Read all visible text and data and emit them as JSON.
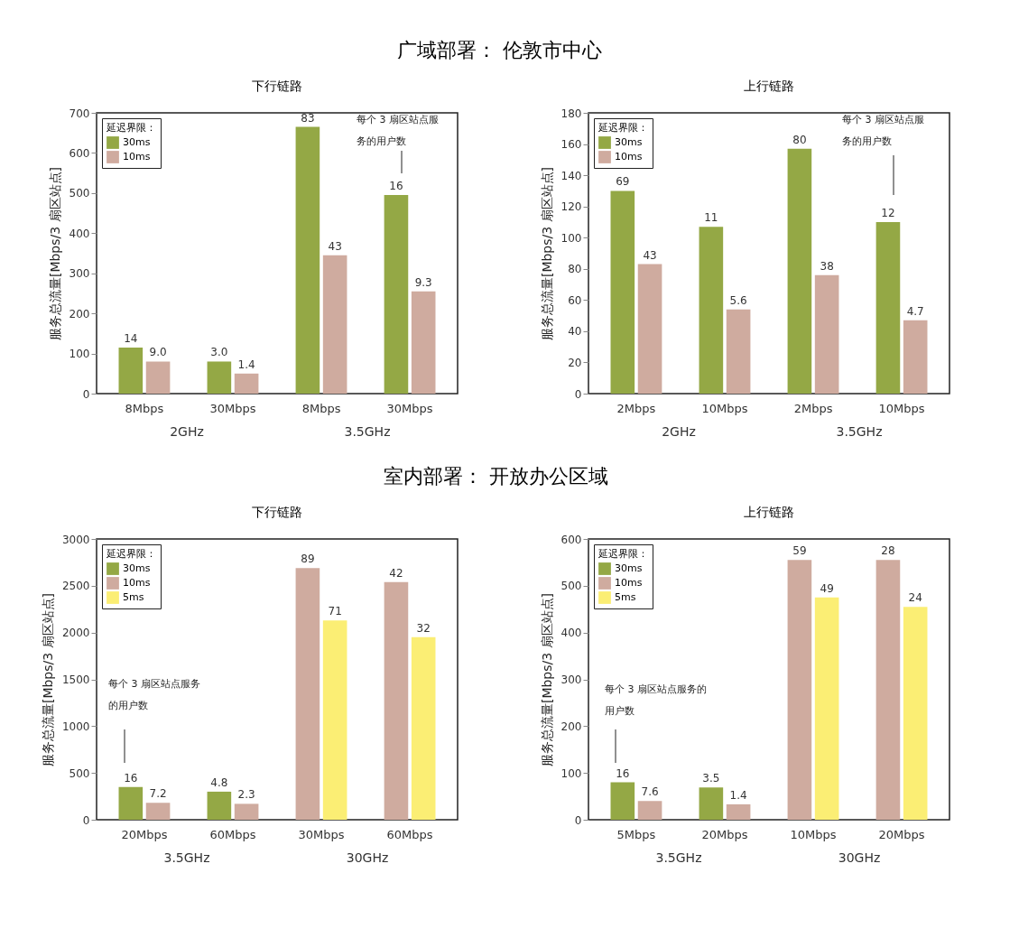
{
  "chart_data": [
    {
      "type": "bar",
      "title": "广域部署： 伦敦市中心",
      "subtitle": "下行链路",
      "ylabel": "服务总流量[Mbps/3 扇区站点]",
      "legend_title": "延迟界限：",
      "legend": "top left",
      "categories": [
        "8Mbps",
        "30Mbps",
        "8Mbps",
        "30Mbps"
      ],
      "series": [
        {
          "name": "30ms",
          "color": "#94a845",
          "values": [
            115,
            80,
            665,
            495
          ]
        },
        {
          "name": "10ms",
          "color": "#cfab9f",
          "values": [
            80,
            50,
            345,
            255
          ]
        }
      ],
      "ylim": [
        0,
        700
      ],
      "yticks": [
        0,
        100,
        200,
        300,
        400,
        500,
        600,
        700
      ],
      "annotations": [
        "每个 3 扇区站点服务的用户数",
        "14",
        "3.0",
        "83",
        "16",
        "9.0",
        "1.4",
        "43",
        "9.3",
        "2GHz",
        "3.5GHz"
      ]
    },
    {
      "type": "bar",
      "subtitle": "上行链路",
      "ylabel": "服务总流量[Mbps/3 扇区站点]",
      "legend_title": "延迟界限：",
      "legend": "top left",
      "categories": [
        "2Mbps",
        "10Mbps",
        "2Mbps",
        "10Mbps"
      ],
      "series": [
        {
          "name": "30ms",
          "color": "#94a845",
          "values": [
            130,
            107,
            157,
            110
          ]
        },
        {
          "name": "10ms",
          "color": "#cfab9f",
          "values": [
            83,
            54,
            76,
            47
          ]
        }
      ],
      "ylim": [
        0,
        180
      ],
      "yticks": [
        0,
        20,
        40,
        60,
        80,
        100,
        120,
        140,
        160,
        180
      ],
      "annotations": [
        "每个 3 扇区站点服务的用户数",
        "69",
        "11",
        "80",
        "12",
        "43",
        "5.6",
        "38",
        "4.7",
        "2GHz",
        "3.5GHz"
      ]
    },
    {
      "type": "bar",
      "title": "室内部署： 开放办公区域",
      "subtitle": "下行链路",
      "ylabel": "服务总流量[Mbps/3 扇区站点]",
      "legend_title": "延迟界限：",
      "legend": "top left",
      "categories": [
        "20Mbps",
        "60Mbps",
        "30Mbps",
        "60Mbps"
      ],
      "series": [
        {
          "name": "30ms",
          "color": "#94a845",
          "values": [
            350,
            300,
            null,
            null
          ]
        },
        {
          "name": "10ms",
          "color": "#cfab9f",
          "values": [
            180,
            170,
            2690,
            2540
          ]
        },
        {
          "name": "5ms",
          "color": "#fbee74",
          "values": [
            null,
            null,
            2130,
            1950
          ]
        }
      ],
      "ylim": [
        0,
        3000
      ],
      "yticks": [
        0,
        500,
        1000,
        1500,
        2000,
        2500,
        3000
      ],
      "annotations": [
        "每个 3 扇区站点服务的用户数",
        "16",
        "4.8",
        "7.2",
        "2.3",
        "89",
        "42",
        "71",
        "32",
        "3.5GHz",
        "30GHz"
      ]
    },
    {
      "type": "bar",
      "subtitle": "上行链路",
      "ylabel": "服务总流量[Mbps/3 扇区站点]",
      "legend_title": "延迟界限：",
      "legend": "top left",
      "categories": [
        "5Mbps",
        "20Mbps",
        "10Mbps",
        "20Mbps"
      ],
      "series": [
        {
          "name": "30ms",
          "color": "#94a845",
          "values": [
            80,
            69,
            null,
            null
          ]
        },
        {
          "name": "10ms",
          "color": "#cfab9f",
          "values": [
            40,
            33,
            555,
            555
          ]
        },
        {
          "name": "5ms",
          "color": "#fbee74",
          "values": [
            null,
            null,
            475,
            455
          ]
        }
      ],
      "ylim": [
        0,
        600
      ],
      "yticks": [
        0,
        100,
        200,
        300,
        400,
        500,
        600
      ],
      "annotations": [
        "每个 3 扇区站点服务的用户数",
        "16",
        "3.5",
        "7.6",
        "1.4",
        "59",
        "28",
        "49",
        "24",
        "3.5GHz",
        "30GHz"
      ]
    }
  ]
}
